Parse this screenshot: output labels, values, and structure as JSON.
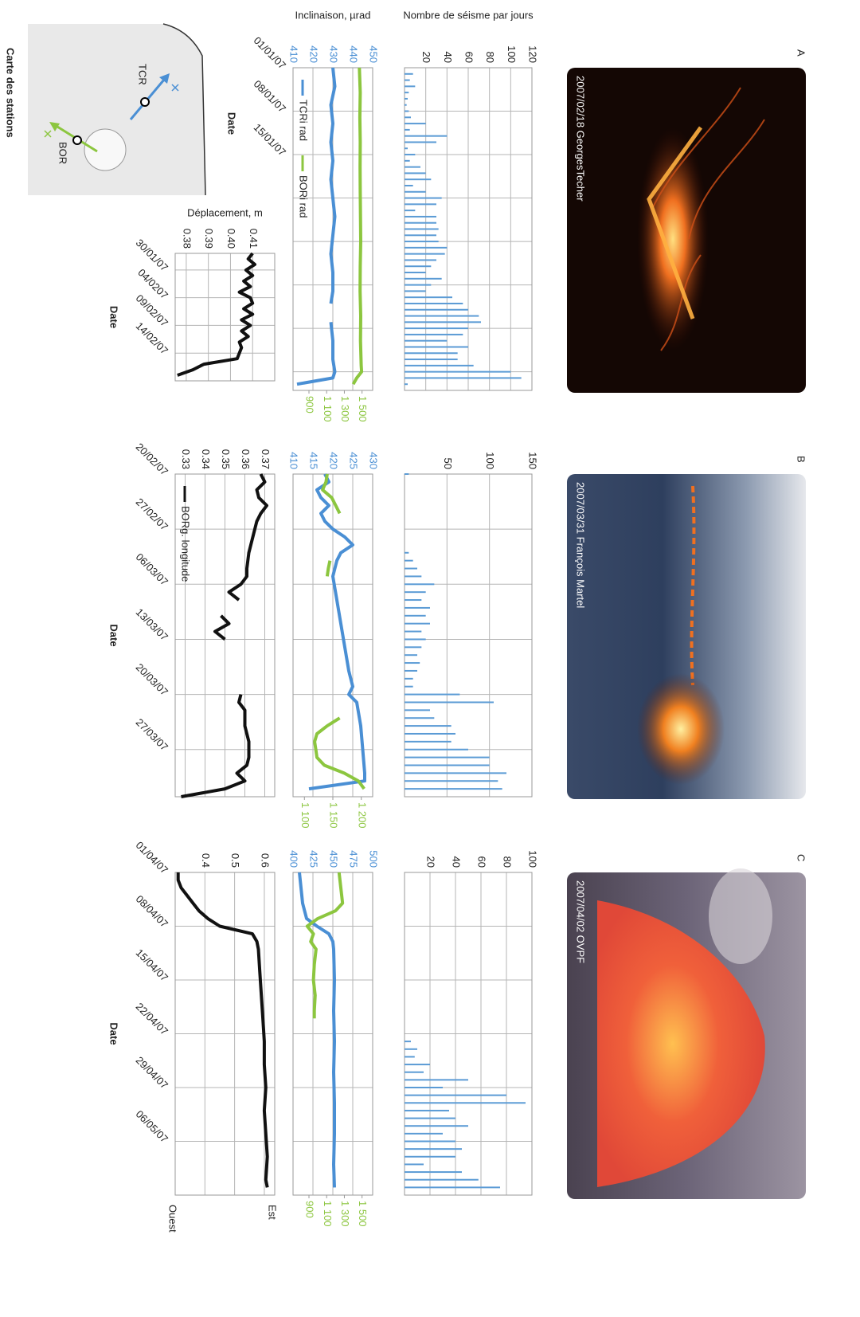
{
  "panels": [
    {
      "label": "A",
      "photo_caption": "2007/02/18 GeorgesTecher"
    },
    {
      "label": "B",
      "photo_caption": "2007/03/31 François Martel"
    },
    {
      "label": "C",
      "photo_caption": "2007/04/02 OVPF"
    }
  ],
  "map": {
    "title": "Carte des stations",
    "stations": [
      "TCR",
      "BOR"
    ]
  },
  "chart_data": [
    {
      "type": "bar",
      "ylabel": "Nombre de séisme par jours",
      "color": "#5b9bd5",
      "grid": true,
      "xlim": [
        0,
        52
      ],
      "ylim": [
        0,
        120
      ],
      "yticks": [
        20,
        40,
        60,
        80,
        100,
        120
      ],
      "xticks": [
        {
          "value": 0,
          "label": null
        },
        {
          "value": 7,
          "label": null
        },
        {
          "value": 14,
          "label": null
        },
        {
          "value": 21,
          "label": null
        },
        {
          "value": 28,
          "label": null
        },
        {
          "value": 35,
          "label": null
        },
        {
          "value": 42,
          "label": null
        },
        {
          "value": 49,
          "label": null
        }
      ],
      "x": [
        1,
        2,
        3,
        4,
        5,
        6,
        7,
        8,
        9,
        10,
        11,
        12,
        13,
        14,
        15,
        16,
        17,
        18,
        19,
        20,
        21,
        22,
        23,
        24,
        25,
        26,
        27,
        28,
        29,
        30,
        31,
        32,
        33,
        34,
        35,
        36,
        37,
        38,
        39,
        40,
        41,
        42,
        43,
        44,
        45,
        46,
        47,
        48,
        49,
        50,
        51
      ],
      "values": [
        8,
        5,
        10,
        4,
        3,
        2,
        4,
        6,
        20,
        5,
        40,
        30,
        3,
        10,
        5,
        15,
        20,
        25,
        8,
        20,
        35,
        30,
        10,
        30,
        30,
        32,
        30,
        32,
        40,
        38,
        30,
        25,
        20,
        35,
        25,
        20,
        45,
        55,
        60,
        70,
        72,
        60,
        55,
        40,
        60,
        50,
        50,
        65,
        100,
        110,
        3
      ]
    },
    {
      "type": "line",
      "ylabel": "Inclinaison, µrad",
      "xlabel": "Date",
      "grid": true,
      "xlim": [
        0,
        52
      ],
      "ylim": [
        410,
        450
      ],
      "yticks": [
        410,
        420,
        430,
        440,
        450
      ],
      "y2lim": [
        720,
        1620
      ],
      "y2ticks": [
        900,
        {
          "value": 1100,
          "label": "1 100"
        },
        {
          "value": 1300,
          "label": "1 300"
        },
        {
          "value": 1500,
          "label": "1 500"
        }
      ],
      "xticks": [
        {
          "value": 0,
          "label": "01/01/07"
        },
        {
          "value": 7,
          "label": "08/01/07"
        },
        {
          "value": 14,
          "label": "15/01/07"
        },
        {
          "value": 21,
          "label": null
        },
        {
          "value": 28,
          "label": null
        },
        {
          "value": 35,
          "label": null
        },
        {
          "value": 42,
          "label": null
        },
        {
          "value": 49,
          "label": null
        }
      ],
      "series": [
        {
          "name": "TCRi rad",
          "color": "#4a8fd4",
          "x": [
            0,
            3,
            6,
            9,
            12,
            15,
            18,
            21,
            24,
            27,
            30,
            33,
            36,
            38,
            39,
            41,
            44,
            47,
            49,
            50,
            51
          ],
          "values": [
            430,
            431,
            429,
            430,
            429,
            430,
            429,
            430,
            431,
            430,
            429,
            430,
            430,
            429,
            null,
            429,
            430,
            430,
            431,
            430,
            412
          ]
        },
        {
          "name": "BORi rad",
          "color": "#8cc63f",
          "axis": "y2",
          "x": [
            0,
            4,
            8,
            12,
            16,
            20,
            24,
            28,
            32,
            36,
            40,
            44,
            48,
            49,
            50,
            51
          ],
          "values": [
            1470,
            1480,
            1475,
            1480,
            1478,
            1480,
            1482,
            1485,
            1480,
            1478,
            1485,
            1482,
            1490,
            1495,
            1440,
            1400
          ]
        }
      ]
    },
    {
      "type": "line",
      "ylabel": "Déplacement, m",
      "xlabel": "Date",
      "color": "#111111",
      "grid": true,
      "xlim": [
        26,
        49
      ],
      "ylim": [
        0.375,
        0.42
      ],
      "yticks": [
        0.38,
        0.39,
        {
          "value": 0.4,
          "label": "0.40"
        },
        0.41
      ],
      "xticks": [
        {
          "value": 29,
          "label": "30/01/07"
        },
        {
          "value": 34,
          "label": "04/0207"
        },
        {
          "value": 39,
          "label": "09/02/07"
        },
        {
          "value": 44,
          "label": "14/02/07"
        }
      ],
      "x": [
        26,
        27,
        28,
        29,
        30,
        31,
        32,
        33,
        34,
        35,
        36,
        37,
        38,
        39,
        40,
        41,
        42,
        43,
        44,
        45,
        46,
        47,
        48
      ],
      "values": [
        0.41,
        0.408,
        0.411,
        0.407,
        0.41,
        0.406,
        0.409,
        0.404,
        0.409,
        0.41,
        0.406,
        0.41,
        0.405,
        0.409,
        0.405,
        0.408,
        0.404,
        0.405,
        0.404,
        0.403,
        0.388,
        0.383,
        0.376
      ]
    },
    {
      "type": "bar",
      "color": "#5b9bd5",
      "grid": true,
      "xlim": [
        50,
        91
      ],
      "ylim": [
        0,
        150
      ],
      "yticks": [
        50,
        100,
        150
      ],
      "xticks": [
        {
          "value": 50,
          "label": null
        },
        {
          "value": 57,
          "label": null
        },
        {
          "value": 64,
          "label": null
        },
        {
          "value": 71,
          "label": null
        },
        {
          "value": 78,
          "label": null
        },
        {
          "value": 85,
          "label": null
        }
      ],
      "x": [
        50,
        60,
        61,
        62,
        63,
        64,
        65,
        66,
        67,
        68,
        69,
        70,
        71,
        72,
        73,
        74,
        75,
        76,
        77,
        78,
        79,
        80,
        81,
        82,
        83,
        84,
        85,
        86,
        87,
        88,
        89,
        90
      ],
      "values": [
        5,
        5,
        10,
        15,
        20,
        35,
        25,
        20,
        30,
        25,
        30,
        20,
        25,
        20,
        15,
        18,
        15,
        10,
        10,
        65,
        105,
        30,
        35,
        55,
        60,
        55,
        75,
        100,
        100,
        120,
        110,
        115
      ]
    },
    {
      "type": "line",
      "grid": true,
      "xlim": [
        50,
        91
      ],
      "ylim": [
        410,
        430
      ],
      "yticks": [
        410,
        415,
        420,
        425,
        430
      ],
      "y2lim": [
        1080,
        1220
      ],
      "y2ticks": [
        {
          "value": 1100,
          "label": "1 100"
        },
        {
          "value": 1150,
          "label": "1 150"
        },
        {
          "value": 1200,
          "label": "1 200"
        }
      ],
      "xticks": [
        {
          "value": 50,
          "label": null
        },
        {
          "value": 57,
          "label": null
        },
        {
          "value": 64,
          "label": null
        },
        {
          "value": 71,
          "label": null
        },
        {
          "value": 78,
          "label": null
        },
        {
          "value": 85,
          "label": null
        }
      ],
      "series": [
        {
          "color": "#4a8fd4",
          "x": [
            50,
            51,
            52,
            53,
            54,
            55,
            56,
            57,
            58,
            59,
            60,
            61,
            63,
            66,
            69,
            72,
            75,
            77,
            78,
            79,
            82,
            85,
            88,
            89,
            90
          ],
          "values": [
            418,
            419,
            416,
            417,
            419,
            417,
            418,
            420,
            423,
            425,
            422,
            421,
            420,
            421,
            422,
            423,
            424,
            425,
            424,
            426,
            427,
            427.5,
            428,
            428,
            414
          ]
        },
        {
          "color": "#8cc63f",
          "axis": "y2",
          "x": [
            50,
            51,
            52,
            53,
            54,
            55,
            56,
            61,
            62,
            63,
            64,
            81,
            82,
            83,
            84,
            85,
            86,
            87,
            88,
            89,
            90
          ],
          "values": [
            1140,
            1138,
            1132,
            1148,
            1155,
            1162,
            null,
            1145,
            1142,
            1140,
            null,
            1162,
            1140,
            1122,
            1118,
            1120,
            1122,
            1135,
            1170,
            1195,
            1205
          ]
        }
      ]
    },
    {
      "type": "line",
      "xlabel": "Date",
      "grid": true,
      "xlim": [
        50,
        91
      ],
      "ylim": [
        0.325,
        0.375
      ],
      "yticks": [
        0.33,
        0.34,
        0.35,
        0.36,
        0.37
      ],
      "xticks": [
        {
          "value": 50,
          "label": "20/02/07"
        },
        {
          "value": 57,
          "label": "27/02/07"
        },
        {
          "value": 64,
          "label": "06/03/07"
        },
        {
          "value": 71,
          "label": "13/03/07"
        },
        {
          "value": 78,
          "label": "20/03/07"
        },
        {
          "value": 85,
          "label": "27/03/07"
        }
      ],
      "series": [
        {
          "name": "BORg. longitude",
          "color": "#111111",
          "x": [
            50,
            51,
            52,
            53,
            54,
            55,
            56,
            58,
            60,
            62,
            63,
            64,
            65,
            66,
            67,
            68,
            69,
            70,
            71,
            72,
            78,
            79,
            80,
            82,
            84,
            86,
            87,
            88,
            89,
            90,
            91
          ],
          "values": [
            0.368,
            0.37,
            0.366,
            0.367,
            0.371,
            0.368,
            0.366,
            0.364,
            0.362,
            0.361,
            0.361,
            0.358,
            0.352,
            0.357,
            null,
            0.348,
            0.352,
            0.345,
            0.35,
            null,
            0.358,
            0.357,
            0.36,
            0.36,
            0.362,
            0.362,
            0.361,
            0.356,
            0.36,
            0.35,
            0.328
          ]
        }
      ]
    },
    {
      "type": "bar",
      "color": "#5b9bd5",
      "grid": true,
      "xlim": [
        90,
        132
      ],
      "ylim": [
        0,
        100
      ],
      "yticks": [
        20,
        40,
        60,
        80,
        100
      ],
      "xticks": [
        {
          "value": 90,
          "label": null
        },
        {
          "value": 97,
          "label": null
        },
        {
          "value": 104,
          "label": null
        },
        {
          "value": 111,
          "label": null
        },
        {
          "value": 118,
          "label": null
        },
        {
          "value": 125,
          "label": null
        }
      ],
      "x": [
        112,
        113,
        114,
        115,
        116,
        117,
        118,
        119,
        120,
        121,
        122,
        123,
        124,
        125,
        126,
        127,
        128,
        129,
        130,
        131
      ],
      "values": [
        5,
        10,
        8,
        20,
        15,
        50,
        30,
        80,
        95,
        35,
        40,
        50,
        30,
        40,
        45,
        40,
        15,
        45,
        58,
        75
      ]
    },
    {
      "type": "line",
      "grid": true,
      "xlim": [
        90,
        132
      ],
      "ylim": [
        400,
        500
      ],
      "yticks": [
        400,
        425,
        450,
        475,
        500
      ],
      "y2lim": [
        720,
        1620
      ],
      "y2ticks": [
        900,
        {
          "value": 1100,
          "label": "1 100"
        },
        {
          "value": 1300,
          "label": "1 300"
        },
        {
          "value": 1500,
          "label": "1 500"
        }
      ],
      "xticks": [
        {
          "value": 90,
          "label": null
        },
        {
          "value": 97,
          "label": null
        },
        {
          "value": 104,
          "label": null
        },
        {
          "value": 111,
          "label": null
        },
        {
          "value": 118,
          "label": null
        },
        {
          "value": 125,
          "label": null
        }
      ],
      "series": [
        {
          "color": "#4a8fd4",
          "x": [
            90,
            92,
            94,
            96,
            97,
            98,
            99,
            100,
            104,
            108,
            112,
            116,
            120,
            124,
            128,
            131
          ],
          "values": [
            408,
            410,
            412,
            417,
            430,
            445,
            450,
            451,
            452,
            451,
            452,
            451,
            452,
            452,
            451,
            452
          ]
        },
        {
          "color": "#8cc63f",
          "axis": "y2",
          "x": [
            90,
            91,
            93,
            94,
            95,
            96,
            97,
            98,
            99,
            100,
            102,
            104,
            106,
            108,
            109
          ],
          "values": [
            1240,
            1250,
            1270,
            1280,
            1200,
            1000,
            880,
            950,
            920,
            980,
            960,
            950,
            970,
            960,
            960
          ]
        }
      ]
    },
    {
      "type": "line",
      "xlabel": "Date",
      "color": "#111111",
      "grid": true,
      "annotations": {
        "top": "Est",
        "bottom": "Ouest"
      },
      "xlim": [
        90,
        132
      ],
      "ylim": [
        0.3,
        0.635
      ],
      "yticks": [
        0.4,
        0.5,
        0.6
      ],
      "xticks": [
        {
          "value": 90,
          "label": "01/04/07"
        },
        {
          "value": 97,
          "label": "08/04/07"
        },
        {
          "value": 104,
          "label": "15/04/07"
        },
        {
          "value": 111,
          "label": "22/04/07"
        },
        {
          "value": 118,
          "label": "29/04/07"
        },
        {
          "value": 125,
          "label": "06/05/07"
        }
      ],
      "x": [
        90,
        91,
        92,
        93,
        94,
        95,
        96,
        97,
        98,
        99,
        100,
        103,
        106,
        109,
        112,
        115,
        118,
        121,
        124,
        127,
        130,
        131
      ],
      "values": [
        0.31,
        0.31,
        0.32,
        0.34,
        0.36,
        0.38,
        0.41,
        0.45,
        0.56,
        0.575,
        0.58,
        0.585,
        0.59,
        0.595,
        0.6,
        0.6,
        0.605,
        0.6,
        0.605,
        0.61,
        0.605,
        0.61
      ]
    }
  ]
}
